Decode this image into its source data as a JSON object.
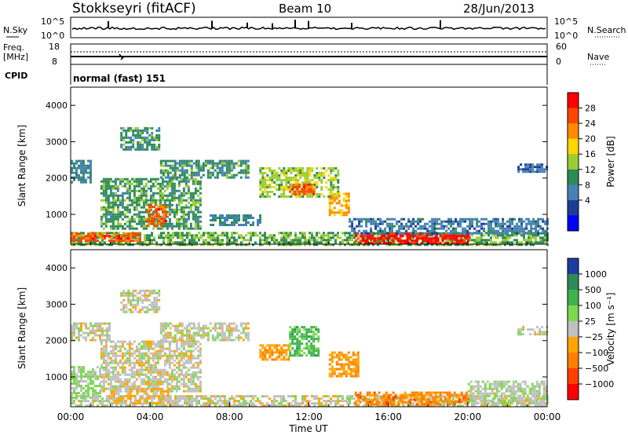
{
  "header": {
    "station": "Stokkseyri (fitACF)",
    "beam": "Beam 10",
    "date": "28/Jun/2013"
  },
  "noise_panel": {
    "left_label": "N.Sky",
    "left_ticks": [
      "10^5",
      "10^0"
    ],
    "right_label": "N.Search",
    "right_ticks": [
      "10^5",
      "10^0"
    ]
  },
  "freq_panel": {
    "left_label_line1": "Freq.",
    "left_label_line2": "[MHz]",
    "left_ticks": [
      "18",
      "8"
    ],
    "right_label": "Nave",
    "right_ticks": [
      "60",
      "0"
    ]
  },
  "cpid": {
    "label": "CPID",
    "value": "normal (fast) 151"
  },
  "power_colorbar": {
    "title": "Power [dB]",
    "ticks": [
      "28",
      "24",
      "20",
      "16",
      "12",
      "8",
      "4"
    ],
    "colors": [
      "#ff0000",
      "#ff4500",
      "#ff8c00",
      "#ffd700",
      "#9acd32",
      "#2e8b57",
      "#4682b4",
      "#1e3c96",
      "#0000ff"
    ]
  },
  "velocity_colorbar": {
    "title": "Velocity [m s⁻¹]",
    "ticks": [
      "1000",
      "500",
      "100",
      "25",
      "−25",
      "−100",
      "−500",
      "−1000"
    ],
    "colors": [
      "#1e3ca0",
      "#2e8b57",
      "#3cb44b",
      "#7cd850",
      "#c0c0c0",
      "#ffa500",
      "#ff7f00",
      "#ff4000",
      "#ff0000"
    ]
  },
  "chart_data": [
    {
      "type": "heatmap",
      "title": "",
      "xlabel": "Time UT",
      "ylabel": "Slant Range [km]",
      "x_ticks": [
        "00:00",
        "04:00",
        "08:00",
        "12:00",
        "16:00",
        "20:00",
        "00:00"
      ],
      "y_ticks": [
        "1000",
        "2000",
        "3000",
        "4000"
      ],
      "xlim": [
        0,
        24
      ],
      "ylim": [
        180,
        4500
      ],
      "value_label": "Power [dB]",
      "value_range": [
        0,
        32
      ],
      "regions": [
        {
          "t0": 0.0,
          "t1": 24.0,
          "r0": 180,
          "r1": 520,
          "value": 14
        },
        {
          "t0": 0.0,
          "t1": 3.5,
          "r0": 250,
          "r1": 500,
          "value": 26
        },
        {
          "t0": 14.3,
          "t1": 20.0,
          "r0": 200,
          "r1": 500,
          "value": 30
        },
        {
          "t0": 1.5,
          "t1": 6.5,
          "r0": 600,
          "r1": 2000,
          "value": 13
        },
        {
          "t0": 3.8,
          "t1": 4.8,
          "r0": 700,
          "r1": 1300,
          "value": 26
        },
        {
          "t0": 0.0,
          "t1": 1.0,
          "r0": 1900,
          "r1": 2500,
          "value": 10
        },
        {
          "t0": 2.5,
          "t1": 4.5,
          "r0": 2800,
          "r1": 3400,
          "value": 12
        },
        {
          "t0": 4.5,
          "t1": 9.0,
          "r0": 2000,
          "r1": 2500,
          "value": 12
        },
        {
          "t0": 9.5,
          "t1": 13.5,
          "r0": 1500,
          "r1": 2300,
          "value": 16
        },
        {
          "t0": 11.0,
          "t1": 12.3,
          "r0": 1550,
          "r1": 1850,
          "value": 26
        },
        {
          "t0": 13.0,
          "t1": 14.0,
          "r0": 1000,
          "r1": 1600,
          "value": 22
        },
        {
          "t0": 7.0,
          "t1": 9.5,
          "r0": 700,
          "r1": 1000,
          "value": 10
        },
        {
          "t0": 14.0,
          "t1": 24.0,
          "r0": 500,
          "r1": 900,
          "value": 9
        },
        {
          "t0": 22.5,
          "t1": 24.0,
          "r0": 2200,
          "r1": 2400,
          "value": 8
        }
      ]
    },
    {
      "type": "heatmap",
      "title": "",
      "xlabel": "Time UT",
      "ylabel": "Slant Range [km]",
      "x_ticks": [
        "00:00",
        "04:00",
        "08:00",
        "12:00",
        "16:00",
        "20:00",
        "00:00"
      ],
      "y_ticks": [
        "1000",
        "2000",
        "3000",
        "4000"
      ],
      "xlim": [
        0,
        24
      ],
      "ylim": [
        180,
        4500
      ],
      "value_label": "Velocity [m s⁻¹]",
      "value_range": [
        -1000,
        1000
      ],
      "regions": [
        {
          "t0": 0.0,
          "t1": 24.0,
          "r0": 180,
          "r1": 500,
          "value": 0
        },
        {
          "t0": 0.0,
          "t1": 1.5,
          "r0": 400,
          "r1": 1300,
          "value": 150
        },
        {
          "t0": 1.5,
          "t1": 6.5,
          "r0": 600,
          "r1": 2000,
          "value": 0
        },
        {
          "t0": 2.0,
          "t1": 5.0,
          "r0": 300,
          "r1": 700,
          "value": -150
        },
        {
          "t0": 2.5,
          "t1": 4.5,
          "r0": 2800,
          "r1": 3400,
          "value": 0
        },
        {
          "t0": 0.0,
          "t1": 2.0,
          "r0": 2000,
          "r1": 2500,
          "value": 0
        },
        {
          "t0": 4.5,
          "t1": 9.0,
          "r0": 2000,
          "r1": 2500,
          "value": 0
        },
        {
          "t0": 9.5,
          "t1": 11.0,
          "r0": 1500,
          "r1": 1900,
          "value": -300
        },
        {
          "t0": 11.0,
          "t1": 12.5,
          "r0": 1600,
          "r1": 2400,
          "value": 400
        },
        {
          "t0": 13.0,
          "t1": 14.5,
          "r0": 1000,
          "r1": 1700,
          "value": -300
        },
        {
          "t0": 14.3,
          "t1": 20.0,
          "r0": 250,
          "r1": 600,
          "value": -400
        },
        {
          "t0": 20.0,
          "t1": 24.0,
          "r0": 300,
          "r1": 900,
          "value": 60
        },
        {
          "t0": 22.5,
          "t1": 24.0,
          "r0": 2200,
          "r1": 2400,
          "value": 0
        }
      ]
    }
  ]
}
